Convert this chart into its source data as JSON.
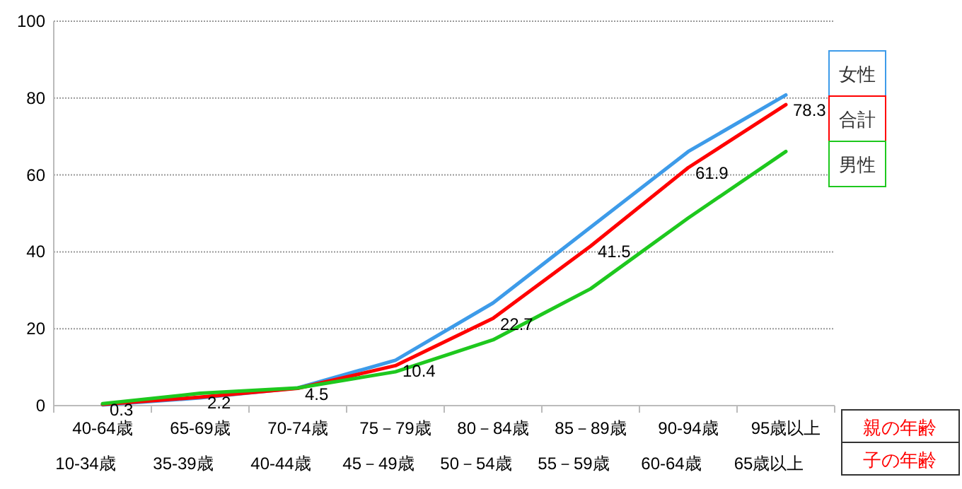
{
  "chart_data": {
    "type": "line",
    "categories": [
      "40-64歳\n10-34歳",
      "65-69歳\n35-39歳",
      "70-74歳\n40-44歳",
      "75－79歳\n45－49歳",
      "80－84歳\n50－54歳",
      "85－89歳\n55－59歳",
      "90-94歳\n60-64歳",
      "95歳以上\n65歳以上"
    ],
    "series": [
      {
        "name": "女性",
        "color": "#3d9be9",
        "values": [
          0.2,
          2.0,
          4.6,
          11.8,
          26.7,
          46.4,
          66.1,
          80.8
        ]
      },
      {
        "name": "合計",
        "color": "#ff0000",
        "values": [
          0.3,
          2.2,
          4.5,
          10.4,
          22.7,
          41.5,
          61.9,
          78.3
        ],
        "value_labels": [
          "0.3",
          "2.2",
          "4.5",
          "10.4",
          "22.7",
          "41.5",
          "61.9",
          "78.3"
        ]
      },
      {
        "name": "男性",
        "color": "#1ec81e",
        "values": [
          0.5,
          3.2,
          4.6,
          8.8,
          17.1,
          30.4,
          48.8,
          66.1
        ]
      }
    ],
    "annotations": [
      "親の年齢",
      "子の年齢"
    ],
    "ylim": [
      0,
      100
    ],
    "yticks": [
      0,
      20,
      40,
      60,
      80,
      100
    ],
    "grid": "y",
    "legend": "right",
    "marker": "none",
    "line_style": "solid"
  }
}
